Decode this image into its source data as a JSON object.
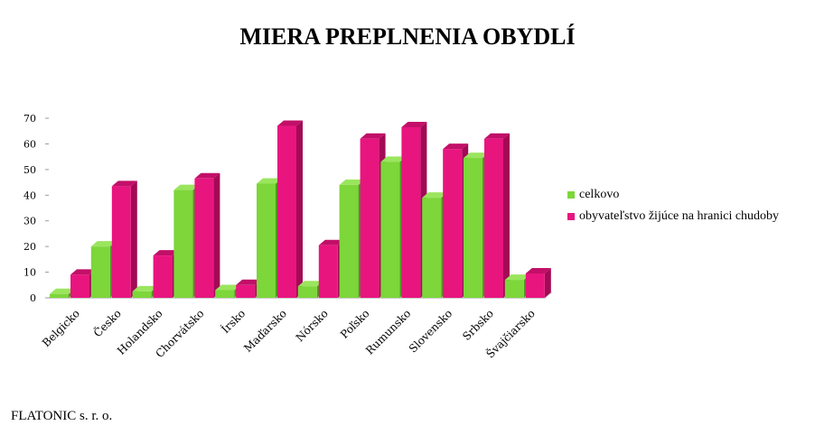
{
  "page": {
    "footer": "FLATONIC s. r. o."
  },
  "colors": {
    "celkovo": "#7dd63a",
    "chudoba": "#e8157f",
    "celkovo_dark": "#4c9a1c",
    "chudoba_dark": "#a30a55",
    "celkovo_top": "#9be55e",
    "chudoba_top": "#c20f68"
  },
  "chart_data": {
    "type": "bar",
    "title": "MIERA PREPLNENIA OBYDLÍ",
    "xlabel": "",
    "ylabel": "",
    "ylim": [
      0,
      70
    ],
    "yticks": [
      "0",
      "10",
      "20",
      "30",
      "40",
      "50",
      "60",
      "70"
    ],
    "categories": [
      "Belgicko",
      "Česko",
      "Holandsko",
      "Chorvátsko",
      "Írsko",
      "Maďarsko",
      "Nórsko",
      "Poľsko",
      "Rumunsko",
      "Slovensko",
      "Srbsko",
      "Švajčiarsko"
    ],
    "series": [
      {
        "name": "celkovo",
        "values": [
          1.5,
          20,
          2.5,
          42,
          3,
          44.5,
          4.5,
          44,
          53,
          39,
          54.5,
          7
        ]
      },
      {
        "name": "obyvateľstvo žijúce na hranici chudoby",
        "values": [
          9,
          43.5,
          16.5,
          46.5,
          5,
          67,
          20.5,
          62,
          66.5,
          58,
          62,
          9.5
        ]
      }
    ],
    "legend_position": "right",
    "grid": false
  }
}
